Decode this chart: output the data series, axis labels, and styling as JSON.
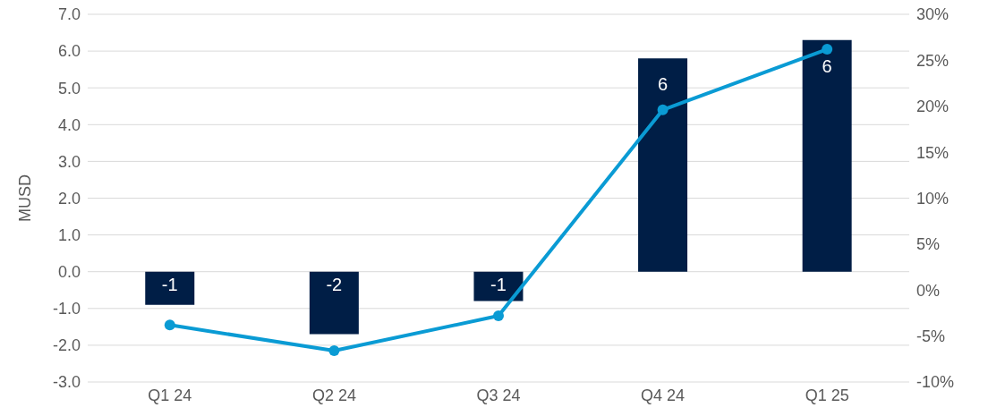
{
  "chart_data": {
    "type": "bar",
    "ylabel": "MUSD",
    "categories": [
      "Q1 24",
      "Q2 24",
      "Q3 24",
      "Q4 24",
      "Q1 25"
    ],
    "series": [
      {
        "color": "#001e46",
        "values": [
          -0.9,
          -1.7,
          -0.8,
          5.8,
          6.3
        ],
        "value_labels": [
          "-1",
          "-2",
          "-1",
          "6",
          "6"
        ]
      },
      {
        "type": "line",
        "axis": "y2",
        "color": "#0a9bd4",
        "values": [
          -3.8,
          -6.6,
          -2.8,
          19.6,
          26.2
        ]
      }
    ],
    "ylim": [
      -3,
      7
    ],
    "yticks": [
      {
        "value": -3,
        "label": "-3.0"
      },
      {
        "value": -2,
        "label": "-2.0"
      },
      {
        "value": -1,
        "label": "-1.0"
      },
      {
        "value": 0,
        "label": "0.0"
      },
      {
        "value": 1,
        "label": "1.0"
      },
      {
        "value": 2,
        "label": "2.0"
      },
      {
        "value": 3,
        "label": "3.0"
      },
      {
        "value": 4,
        "label": "4.0"
      },
      {
        "value": 5,
        "label": "5.0"
      },
      {
        "value": 6,
        "label": "6.0"
      },
      {
        "value": 7,
        "label": "7.0"
      }
    ],
    "y2lim": [
      -10,
      30
    ],
    "y2ticks": [
      {
        "value": -10,
        "label": "-10%"
      },
      {
        "value": -5,
        "label": "-5%"
      },
      {
        "value": 0,
        "label": "0%"
      },
      {
        "value": 5,
        "label": "5%"
      },
      {
        "value": 10,
        "label": "10%"
      },
      {
        "value": 15,
        "label": "15%"
      },
      {
        "value": 20,
        "label": "20%"
      },
      {
        "value": 25,
        "label": "25%"
      },
      {
        "value": 30,
        "label": "30%"
      }
    ],
    "grid": "y",
    "marker": "circle",
    "legend": false
  }
}
